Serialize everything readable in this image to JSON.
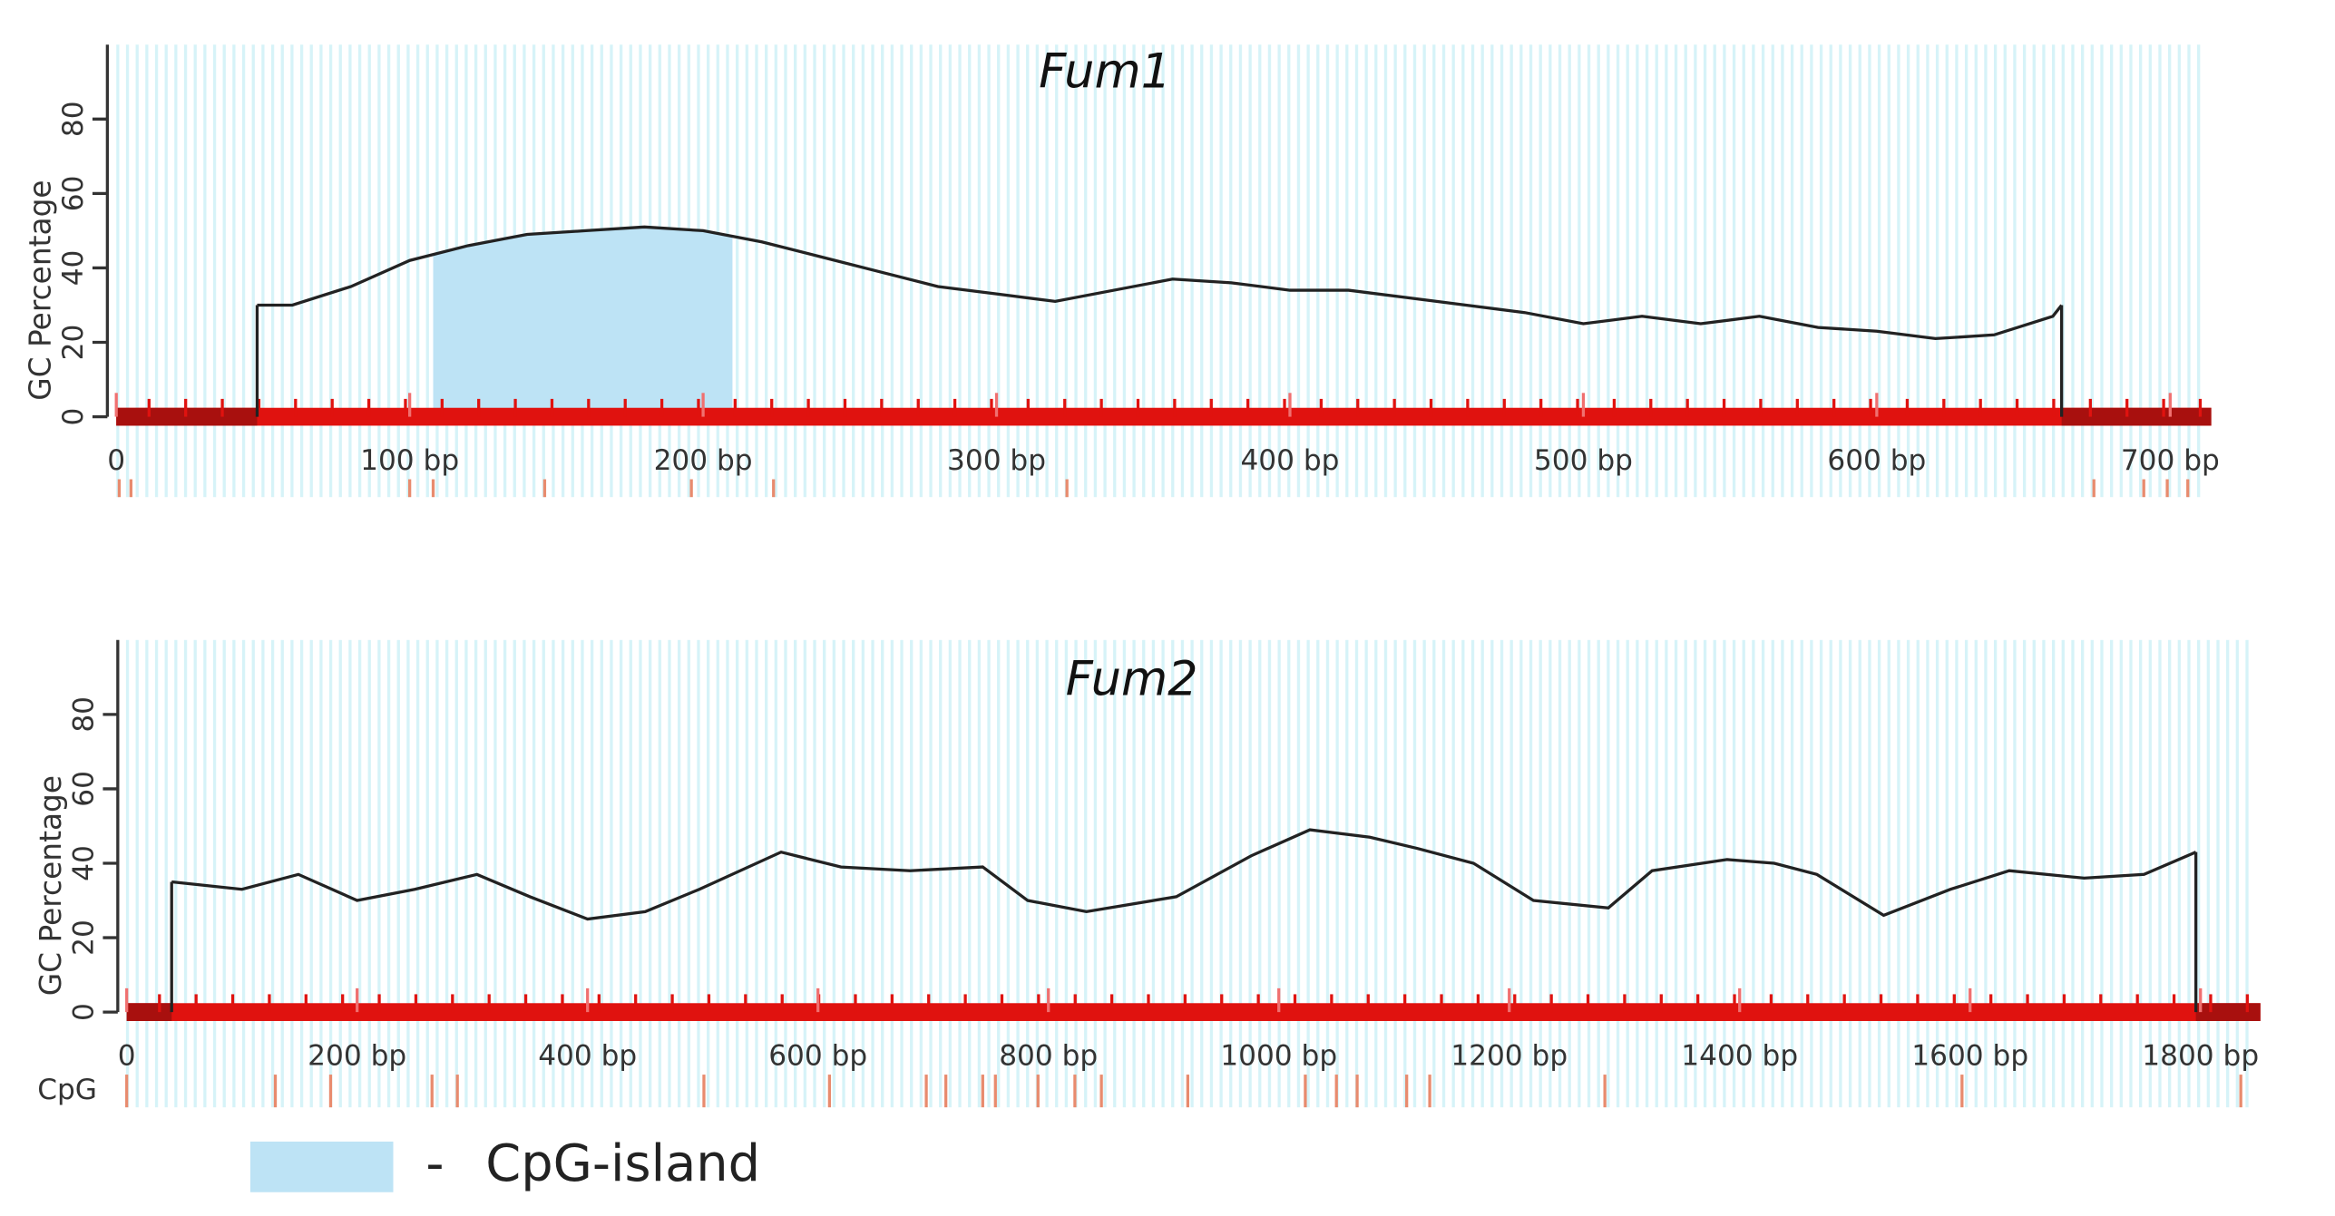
{
  "chart_data": [
    {
      "type": "line",
      "title": "Fum1",
      "ylabel": "GC Percentage",
      "x": [
        48,
        60,
        80,
        100,
        120,
        140,
        160,
        180,
        200,
        220,
        240,
        260,
        280,
        300,
        320,
        340,
        360,
        380,
        400,
        420,
        440,
        460,
        480,
        500,
        520,
        540,
        560,
        580,
        600,
        620,
        640,
        660,
        663
      ],
      "values": [
        30,
        30,
        35,
        42,
        46,
        49,
        50,
        51,
        50,
        47,
        43,
        39,
        35,
        33,
        31,
        34,
        37,
        36,
        34,
        34,
        32,
        30,
        28,
        25,
        27,
        25,
        27,
        24,
        23,
        21,
        22,
        27,
        30
      ],
      "color": "#222222",
      "xlim": [
        0,
        714
      ],
      "ylim": [
        0,
        100
      ],
      "xticks": [
        0,
        {
          "value": 100,
          "label": "100 bp"
        },
        {
          "value": 200,
          "label": "200 bp"
        },
        {
          "value": 300,
          "label": "300 bp"
        },
        {
          "value": 400,
          "label": "400 bp"
        },
        {
          "value": 500,
          "label": "500 bp"
        },
        {
          "value": 600,
          "label": "600 bp"
        },
        {
          "value": 700,
          "label": "700 bp"
        }
      ],
      "yticks": [
        0,
        20,
        40,
        60,
        80
      ],
      "cpg_islands": [
        [
          108,
          210
        ]
      ],
      "cpg_sites": [
        1,
        5,
        100,
        108,
        146,
        196,
        224,
        324,
        674,
        691,
        699,
        706
      ]
    },
    {
      "type": "line",
      "title": "Fum2",
      "ylabel": "GC Percentage",
      "x": [
        39,
        100,
        149,
        200,
        250,
        304,
        350,
        400,
        450,
        497,
        568,
        620,
        680,
        743,
        782,
        833,
        911,
        976,
        1027,
        1079,
        1120,
        1169,
        1221,
        1286,
        1324,
        1389,
        1430,
        1467,
        1525,
        1583,
        1634,
        1699,
        1751,
        1796
      ],
      "values": [
        35,
        33,
        37,
        30,
        33,
        37,
        31,
        25,
        27,
        33,
        43,
        39,
        38,
        39,
        30,
        27,
        31,
        42,
        49,
        47,
        44,
        40,
        30,
        28,
        38,
        41,
        40,
        37,
        26,
        33,
        38,
        36,
        37,
        43
      ],
      "color": "#222222",
      "xlim": [
        0,
        1852
      ],
      "ylim": [
        0,
        100
      ],
      "xticks": [
        0,
        {
          "value": 200,
          "label": "200 bp"
        },
        {
          "value": 400,
          "label": "400 bp"
        },
        {
          "value": 600,
          "label": "600 bp"
        },
        {
          "value": 800,
          "label": "800 bp"
        },
        {
          "value": 1000,
          "label": "1000 bp"
        },
        {
          "value": 1200,
          "label": "1200 bp"
        },
        {
          "value": 1400,
          "label": "1400 bp"
        },
        {
          "value": 1600,
          "label": "1600 bp"
        },
        {
          "value": 1800,
          "label": "1800 bp"
        }
      ],
      "yticks": [
        0,
        20,
        40,
        60,
        80
      ],
      "cpg_label": "CpG",
      "cpg_sites": [
        0,
        129,
        177,
        265,
        287,
        501,
        610,
        694,
        711,
        743,
        754,
        791,
        823,
        846,
        921,
        1023,
        1050,
        1068,
        1111,
        1131,
        1283,
        1593,
        1835
      ]
    }
  ],
  "legend": {
    "color": "#bde3f5",
    "dash": "-",
    "label": "CpG-island"
  }
}
